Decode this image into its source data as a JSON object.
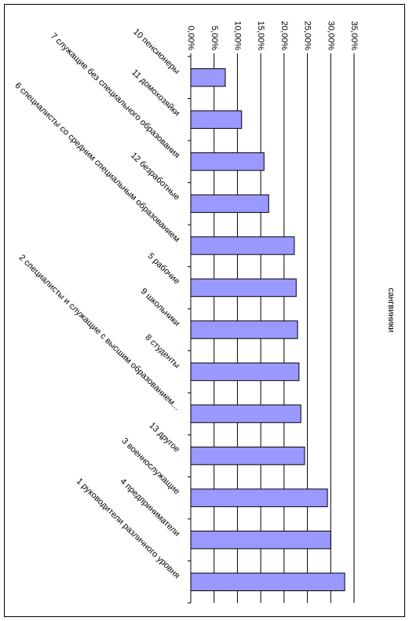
{
  "chart_data": {
    "type": "bar",
    "orientation": "horizontal",
    "title": "сангвиники",
    "categories": [
      "10 пенсионеры",
      "11 домохозяйки",
      "7 служащие без специального образования",
      "12 безработные",
      "6 специалисты со средним специальным образованием",
      "5 рабочие",
      "9 школьники",
      "8 студенты",
      "2 специалисты и служащие с высшим образованием...",
      "13 другое",
      "3 военнослужащие",
      "4 предприниматели",
      "1 руководители различного уровня"
    ],
    "values": [
      7.4,
      10.9,
      15.7,
      16.7,
      22.2,
      22.6,
      22.9,
      23.2,
      23.6,
      24.4,
      29.3,
      30.0,
      33.0
    ],
    "color": "#9999ff",
    "ylim": [
      0,
      35
    ],
    "yticks": [
      {
        "value": 0,
        "label": "0,00%"
      },
      {
        "value": 5,
        "label": "5,00%"
      },
      {
        "value": 10,
        "label": "10,00%"
      },
      {
        "value": 15,
        "label": "15,00%"
      },
      {
        "value": 20,
        "label": "20,00%"
      },
      {
        "value": 25,
        "label": "25,00%"
      },
      {
        "value": 30,
        "label": "30,00%"
      },
      {
        "value": 35,
        "label": "35,00%"
      }
    ],
    "grid": true
  }
}
